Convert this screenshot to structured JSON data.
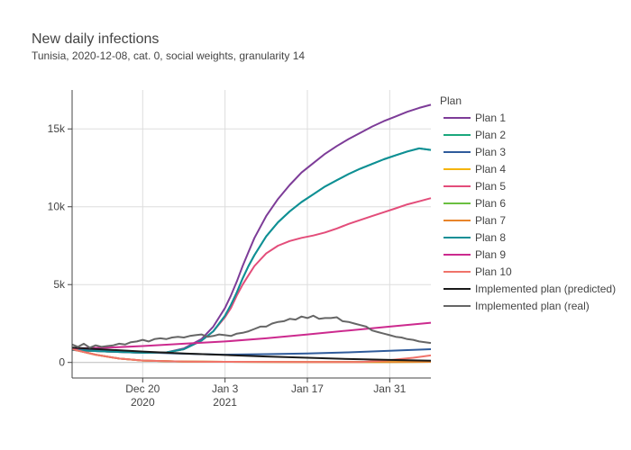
{
  "chart_data": {
    "type": "line",
    "title": "New daily infections",
    "subtitle": "Tunisia, 2020-12-08, cat. 0, social weights, granularity 14",
    "xlabel": "",
    "ylabel": "",
    "x_start": "2020-12-08",
    "x_end": "2021-02-07",
    "x_ticks": [
      {
        "date": "2020-12-20",
        "label": "Dec 20",
        "sublabel": "2020"
      },
      {
        "date": "2021-01-03",
        "label": "Jan 3",
        "sublabel": "2021"
      },
      {
        "date": "2021-01-17",
        "label": "Jan 17",
        "sublabel": ""
      },
      {
        "date": "2021-01-31",
        "label": "Jan 31",
        "sublabel": ""
      }
    ],
    "ylim": [
      -1000,
      17500
    ],
    "y_ticks": [
      {
        "value": 0,
        "label": "0"
      },
      {
        "value": 5000,
        "label": "5k"
      },
      {
        "value": 10000,
        "label": "10k"
      },
      {
        "value": 15000,
        "label": "15k"
      }
    ],
    "grid": true,
    "legend": {
      "title": "Plan",
      "placement": "right"
    },
    "series": [
      {
        "name": "Plan 1",
        "color": "#7d3c98",
        "points": [
          [
            "2020-12-08",
            800
          ],
          [
            "2020-12-14",
            700
          ],
          [
            "2020-12-20",
            620
          ],
          [
            "2020-12-24",
            640
          ],
          [
            "2020-12-27",
            900
          ],
          [
            "2020-12-30",
            1500
          ],
          [
            "2021-01-01",
            2300
          ],
          [
            "2021-01-03",
            3500
          ],
          [
            "2021-01-04",
            4300
          ],
          [
            "2021-01-05",
            5200
          ],
          [
            "2021-01-06",
            6200
          ],
          [
            "2021-01-07",
            7100
          ],
          [
            "2021-01-08",
            8000
          ],
          [
            "2021-01-09",
            8700
          ],
          [
            "2021-01-10",
            9400
          ],
          [
            "2021-01-12",
            10500
          ],
          [
            "2021-01-14",
            11400
          ],
          [
            "2021-01-16",
            12200
          ],
          [
            "2021-01-18",
            12800
          ],
          [
            "2021-01-20",
            13400
          ],
          [
            "2021-01-22",
            13900
          ],
          [
            "2021-01-24",
            14350
          ],
          [
            "2021-01-26",
            14750
          ],
          [
            "2021-01-28",
            15150
          ],
          [
            "2021-01-30",
            15500
          ],
          [
            "2021-02-01",
            15800
          ],
          [
            "2021-02-03",
            16100
          ],
          [
            "2021-02-05",
            16350
          ],
          [
            "2021-02-07",
            16550
          ]
        ]
      },
      {
        "name": "Plan 2",
        "color": "#1aa87c",
        "points": [
          [
            "2020-12-08",
            800
          ],
          [
            "2020-12-14",
            700
          ],
          [
            "2020-12-20",
            620
          ],
          [
            "2020-12-24",
            640
          ],
          [
            "2020-12-27",
            850
          ],
          [
            "2020-12-30",
            1400
          ],
          [
            "2021-01-01",
            2000
          ],
          [
            "2021-01-03",
            3000
          ],
          [
            "2021-01-04",
            3700
          ],
          [
            "2021-01-05",
            4500
          ],
          [
            "2021-01-06",
            5400
          ],
          [
            "2021-01-07",
            6200
          ],
          [
            "2021-01-08",
            6900
          ],
          [
            "2021-01-09",
            7500
          ],
          [
            "2021-01-10",
            8100
          ],
          [
            "2021-01-12",
            9000
          ],
          [
            "2021-01-14",
            9700
          ],
          [
            "2021-01-16",
            10300
          ],
          [
            "2021-01-18",
            10800
          ],
          [
            "2021-01-20",
            11300
          ],
          [
            "2021-01-22",
            11700
          ],
          [
            "2021-01-24",
            12100
          ],
          [
            "2021-01-26",
            12450
          ],
          [
            "2021-01-28",
            12750
          ],
          [
            "2021-01-30",
            13050
          ],
          [
            "2021-02-01",
            13300
          ],
          [
            "2021-02-03",
            13550
          ],
          [
            "2021-02-05",
            13750
          ],
          [
            "2021-02-07",
            13650
          ]
        ]
      },
      {
        "name": "Plan 3",
        "color": "#2f5b9b",
        "points": [
          [
            "2020-12-08",
            900
          ],
          [
            "2020-12-14",
            760
          ],
          [
            "2020-12-20",
            650
          ],
          [
            "2020-12-27",
            560
          ],
          [
            "2021-01-03",
            500
          ],
          [
            "2021-01-10",
            530
          ],
          [
            "2021-01-17",
            580
          ],
          [
            "2021-01-24",
            650
          ],
          [
            "2021-01-31",
            750
          ],
          [
            "2021-02-07",
            850
          ]
        ]
      },
      {
        "name": "Plan 4",
        "color": "#f5b40a",
        "points": [
          [
            "2020-12-08",
            850
          ],
          [
            "2020-12-12",
            500
          ],
          [
            "2020-12-16",
            250
          ],
          [
            "2020-12-20",
            120
          ],
          [
            "2020-12-27",
            60
          ],
          [
            "2021-01-03",
            40
          ],
          [
            "2021-01-17",
            30
          ],
          [
            "2021-01-31",
            30
          ],
          [
            "2021-02-07",
            40
          ]
        ]
      },
      {
        "name": "Plan 5",
        "color": "#e34d7a",
        "points": [
          [
            "2020-12-08",
            800
          ],
          [
            "2020-12-14",
            700
          ],
          [
            "2020-12-20",
            620
          ],
          [
            "2020-12-24",
            640
          ],
          [
            "2020-12-27",
            850
          ],
          [
            "2020-12-30",
            1400
          ],
          [
            "2021-01-01",
            2000
          ],
          [
            "2021-01-03",
            2900
          ],
          [
            "2021-01-04",
            3500
          ],
          [
            "2021-01-05",
            4300
          ],
          [
            "2021-01-06",
            5000
          ],
          [
            "2021-01-07",
            5600
          ],
          [
            "2021-01-08",
            6200
          ],
          [
            "2021-01-09",
            6600
          ],
          [
            "2021-01-10",
            7000
          ],
          [
            "2021-01-12",
            7500
          ],
          [
            "2021-01-14",
            7800
          ],
          [
            "2021-01-16",
            8000
          ],
          [
            "2021-01-18",
            8150
          ],
          [
            "2021-01-20",
            8350
          ],
          [
            "2021-01-22",
            8600
          ],
          [
            "2021-01-24",
            8900
          ],
          [
            "2021-01-26",
            9150
          ],
          [
            "2021-01-28",
            9400
          ],
          [
            "2021-01-30",
            9650
          ],
          [
            "2021-02-01",
            9900
          ],
          [
            "2021-02-03",
            10150
          ],
          [
            "2021-02-05",
            10350
          ],
          [
            "2021-02-07",
            10550
          ]
        ]
      },
      {
        "name": "Plan 6",
        "color": "#6abf40",
        "points": [
          [
            "2020-12-08",
            850
          ],
          [
            "2020-12-12",
            500
          ],
          [
            "2020-12-16",
            250
          ],
          [
            "2020-12-20",
            120
          ],
          [
            "2020-12-27",
            60
          ],
          [
            "2021-01-03",
            40
          ],
          [
            "2021-01-17",
            30
          ],
          [
            "2021-01-31",
            30
          ],
          [
            "2021-02-07",
            40
          ]
        ]
      },
      {
        "name": "Plan 7",
        "color": "#e8842a",
        "points": [
          [
            "2020-12-08",
            850
          ],
          [
            "2020-12-12",
            500
          ],
          [
            "2020-12-16",
            250
          ],
          [
            "2020-12-20",
            120
          ],
          [
            "2020-12-27",
            60
          ],
          [
            "2021-01-03",
            40
          ],
          [
            "2021-01-17",
            30
          ],
          [
            "2021-01-31",
            30
          ],
          [
            "2021-02-07",
            40
          ]
        ]
      },
      {
        "name": "Plan 8",
        "color": "#0f8f96",
        "points": [
          [
            "2020-12-08",
            800
          ],
          [
            "2020-12-14",
            700
          ],
          [
            "2020-12-20",
            620
          ],
          [
            "2020-12-24",
            640
          ],
          [
            "2020-12-27",
            850
          ],
          [
            "2020-12-30",
            1400
          ],
          [
            "2021-01-01",
            2000
          ],
          [
            "2021-01-03",
            3000
          ],
          [
            "2021-01-04",
            3700
          ],
          [
            "2021-01-05",
            4500
          ],
          [
            "2021-01-06",
            5400
          ],
          [
            "2021-01-07",
            6200
          ],
          [
            "2021-01-08",
            6900
          ],
          [
            "2021-01-09",
            7500
          ],
          [
            "2021-01-10",
            8100
          ],
          [
            "2021-01-12",
            9000
          ],
          [
            "2021-01-14",
            9700
          ],
          [
            "2021-01-16",
            10300
          ],
          [
            "2021-01-18",
            10800
          ],
          [
            "2021-01-20",
            11300
          ],
          [
            "2021-01-22",
            11700
          ],
          [
            "2021-01-24",
            12100
          ],
          [
            "2021-01-26",
            12450
          ],
          [
            "2021-01-28",
            12750
          ],
          [
            "2021-01-30",
            13050
          ],
          [
            "2021-02-01",
            13300
          ],
          [
            "2021-02-03",
            13550
          ],
          [
            "2021-02-05",
            13750
          ],
          [
            "2021-02-07",
            13650
          ]
        ]
      },
      {
        "name": "Plan 9",
        "color": "#cc2a8e",
        "points": [
          [
            "2020-12-08",
            900
          ],
          [
            "2020-12-14",
            950
          ],
          [
            "2020-12-20",
            1050
          ],
          [
            "2020-12-27",
            1200
          ],
          [
            "2021-01-03",
            1350
          ],
          [
            "2021-01-10",
            1550
          ],
          [
            "2021-01-17",
            1800
          ],
          [
            "2021-01-24",
            2050
          ],
          [
            "2021-01-31",
            2300
          ],
          [
            "2021-02-07",
            2550
          ]
        ]
      },
      {
        "name": "Plan 10",
        "color": "#f0736a",
        "points": [
          [
            "2020-12-08",
            850
          ],
          [
            "2020-12-12",
            500
          ],
          [
            "2020-12-16",
            250
          ],
          [
            "2020-12-20",
            120
          ],
          [
            "2020-12-27",
            60
          ],
          [
            "2021-01-03",
            40
          ],
          [
            "2021-01-17",
            30
          ],
          [
            "2021-01-26",
            30
          ],
          [
            "2021-01-31",
            150
          ],
          [
            "2021-02-04",
            300
          ],
          [
            "2021-02-07",
            450
          ]
        ]
      },
      {
        "name": "Implemented plan (predicted)",
        "color": "#1a1a1a",
        "points": [
          [
            "2020-12-08",
            950
          ],
          [
            "2020-12-14",
            820
          ],
          [
            "2020-12-20",
            700
          ],
          [
            "2020-12-27",
            580
          ],
          [
            "2021-01-03",
            480
          ],
          [
            "2021-01-10",
            380
          ],
          [
            "2021-01-17",
            300
          ],
          [
            "2021-01-24",
            220
          ],
          [
            "2021-01-31",
            160
          ],
          [
            "2021-02-07",
            110
          ]
        ]
      },
      {
        "name": "Implemented plan (real)",
        "color": "#666666",
        "points": [
          [
            "2020-12-08",
            1150
          ],
          [
            "2020-12-09",
            1000
          ],
          [
            "2020-12-10",
            1200
          ],
          [
            "2020-12-11",
            950
          ],
          [
            "2020-12-12",
            1100
          ],
          [
            "2020-12-13",
            1000
          ],
          [
            "2020-12-14",
            1050
          ],
          [
            "2020-12-15",
            1100
          ],
          [
            "2020-12-16",
            1200
          ],
          [
            "2020-12-17",
            1150
          ],
          [
            "2020-12-18",
            1300
          ],
          [
            "2020-12-19",
            1350
          ],
          [
            "2020-12-20",
            1450
          ],
          [
            "2020-12-21",
            1350
          ],
          [
            "2020-12-22",
            1500
          ],
          [
            "2020-12-23",
            1550
          ],
          [
            "2020-12-24",
            1500
          ],
          [
            "2020-12-25",
            1600
          ],
          [
            "2020-12-26",
            1650
          ],
          [
            "2020-12-27",
            1600
          ],
          [
            "2020-12-28",
            1700
          ],
          [
            "2020-12-29",
            1750
          ],
          [
            "2020-12-30",
            1800
          ],
          [
            "2020-12-31",
            1650
          ],
          [
            "2021-01-01",
            1700
          ],
          [
            "2021-01-02",
            1800
          ],
          [
            "2021-01-03",
            1750
          ],
          [
            "2021-01-04",
            1700
          ],
          [
            "2021-01-05",
            1850
          ],
          [
            "2021-01-06",
            1900
          ],
          [
            "2021-01-07",
            2000
          ],
          [
            "2021-01-08",
            2150
          ],
          [
            "2021-01-09",
            2300
          ],
          [
            "2021-01-10",
            2300
          ],
          [
            "2021-01-11",
            2500
          ],
          [
            "2021-01-12",
            2600
          ],
          [
            "2021-01-13",
            2650
          ],
          [
            "2021-01-14",
            2800
          ],
          [
            "2021-01-15",
            2750
          ],
          [
            "2021-01-16",
            2950
          ],
          [
            "2021-01-17",
            2850
          ],
          [
            "2021-01-18",
            3000
          ],
          [
            "2021-01-19",
            2800
          ],
          [
            "2021-01-20",
            2850
          ],
          [
            "2021-01-21",
            2850
          ],
          [
            "2021-01-22",
            2900
          ],
          [
            "2021-01-23",
            2650
          ],
          [
            "2021-01-24",
            2600
          ],
          [
            "2021-01-25",
            2500
          ],
          [
            "2021-01-26",
            2400
          ],
          [
            "2021-01-27",
            2300
          ],
          [
            "2021-01-28",
            2050
          ],
          [
            "2021-01-29",
            1950
          ],
          [
            "2021-01-30",
            1850
          ],
          [
            "2021-01-31",
            1750
          ],
          [
            "2021-02-01",
            1650
          ],
          [
            "2021-02-02",
            1600
          ],
          [
            "2021-02-03",
            1500
          ],
          [
            "2021-02-04",
            1450
          ],
          [
            "2021-02-05",
            1350
          ],
          [
            "2021-02-06",
            1300
          ],
          [
            "2021-02-07",
            1250
          ]
        ]
      }
    ]
  }
}
